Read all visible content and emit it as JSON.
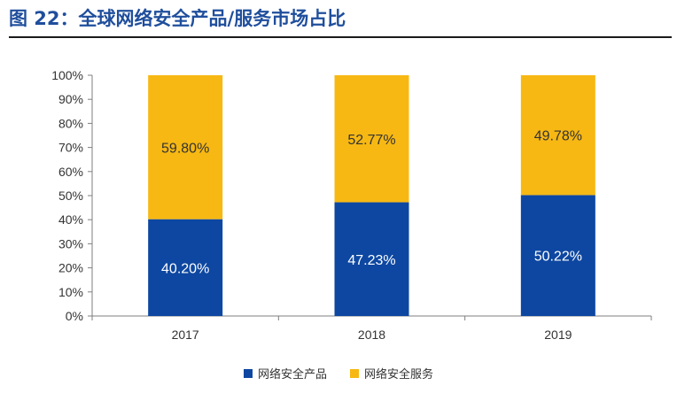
{
  "title": "图 22：全球网络安全产品/服务市场占比",
  "colors": {
    "title": "#1f4e9c",
    "products": "#0d47a1",
    "services": "#f7b813"
  },
  "chart_data": {
    "type": "bar",
    "stacked": true,
    "categories": [
      "2017",
      "2018",
      "2019"
    ],
    "series": [
      {
        "name": "网络安全产品",
        "values": [
          40.2,
          47.23,
          50.22
        ],
        "labels": [
          "40.20%",
          "47.23%",
          "50.22%"
        ]
      },
      {
        "name": "网络安全服务",
        "values": [
          59.8,
          52.77,
          49.78
        ],
        "labels": [
          "59.80%",
          "52.77%",
          "49.78%"
        ]
      }
    ],
    "ylim": [
      0,
      100
    ],
    "yticks": [
      "0%",
      "10%",
      "20%",
      "30%",
      "40%",
      "50%",
      "60%",
      "70%",
      "80%",
      "90%",
      "100%"
    ],
    "grid": false,
    "legend_position": "bottom"
  }
}
